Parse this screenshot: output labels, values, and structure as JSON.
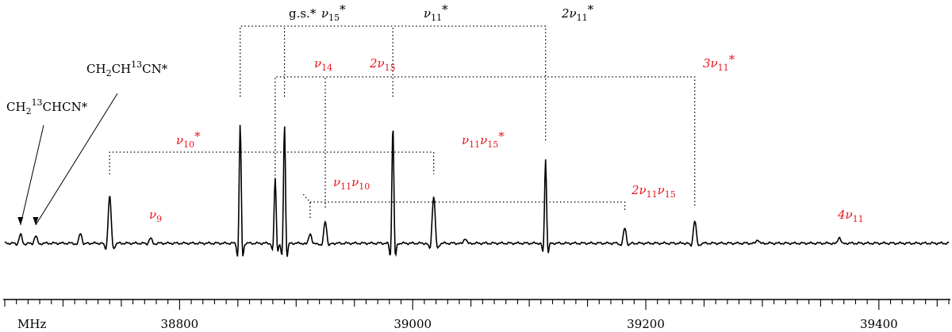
{
  "chart_data": {
    "type": "line",
    "x_unit_label": "MHz",
    "x_range": [
      38650,
      39460
    ],
    "x_ticks": [
      38800,
      39000,
      39200,
      39400
    ],
    "x_tick_labels": [
      "38800",
      "39000",
      "39200",
      "39400"
    ],
    "minor_tick_step": 10,
    "grid": false,
    "legend": "none",
    "colors": {
      "trace": "#000000",
      "label_black": "#000000",
      "label_red": "#e8141b"
    },
    "peaks": [
      {
        "freq": 38663.5,
        "height": 0.07
      },
      {
        "freq": 38676.5,
        "height": 0.06
      },
      {
        "freq": 38715,
        "height": 0.08
      },
      {
        "freq": 38740,
        "height": 0.38
      },
      {
        "freq": 38775,
        "height": 0.04
      },
      {
        "freq": 38852,
        "height": 0.95
      },
      {
        "freq": 38882,
        "height": 0.52
      },
      {
        "freq": 38890,
        "height": 0.95
      },
      {
        "freq": 38912,
        "height": 0.08
      },
      {
        "freq": 38925,
        "height": 0.18
      },
      {
        "freq": 38983,
        "height": 0.95
      },
      {
        "freq": 39018,
        "height": 0.38
      },
      {
        "freq": 39045,
        "height": 0.04
      },
      {
        "freq": 39114,
        "height": 0.68
      },
      {
        "freq": 39182,
        "height": 0.12
      },
      {
        "freq": 39242,
        "height": 0.18
      },
      {
        "freq": 39296,
        "height": 0.03
      },
      {
        "freq": 39366,
        "height": 0.05
      }
    ],
    "labels": [
      {
        "id": "gs",
        "text": "g.s.*",
        "color": "label_black"
      },
      {
        "id": "v15",
        "main": "ν",
        "sub": "15",
        "suffix": "*",
        "color": "label_black"
      },
      {
        "id": "v11",
        "main": "ν",
        "sub": "11",
        "suffix": "*",
        "color": "label_black"
      },
      {
        "id": "2v11",
        "main": "2ν",
        "sub": "11",
        "suffix": "*",
        "color": "label_black"
      },
      {
        "id": "v14",
        "main": "ν",
        "sub": "14",
        "suffix": "",
        "color": "label_red"
      },
      {
        "id": "2v15",
        "main": "2ν",
        "sub": "15",
        "suffix": "",
        "color": "label_red"
      },
      {
        "id": "3v11",
        "main": "3ν",
        "sub": "11",
        "suffix": "*",
        "color": "label_red"
      },
      {
        "id": "v10",
        "main": "ν",
        "sub": "10",
        "suffix": "*",
        "color": "label_red"
      },
      {
        "id": "v11v15",
        "main": "ν",
        "sub": "11",
        "main2": "ν",
        "sub2": "15",
        "suffix": "*",
        "color": "label_red"
      },
      {
        "id": "v11v10",
        "main": "ν",
        "sub": "11",
        "main2": "ν",
        "sub2": "10",
        "suffix": "",
        "color": "label_red"
      },
      {
        "id": "2v11v15",
        "main": "2ν",
        "sub": "11",
        "main2": "ν",
        "sub2": "15",
        "suffix": "",
        "color": "label_red"
      },
      {
        "id": "v9",
        "main": "ν",
        "sub": "9",
        "suffix": "",
        "color": "label_red"
      },
      {
        "id": "4v11",
        "main": "4ν",
        "sub": "11",
        "suffix": "",
        "color": "label_red"
      },
      {
        "id": "ch2ch13cn",
        "main": "CH",
        "sub": "2",
        "main2": "CH",
        "sup2": "13",
        "tail": "CN*",
        "color": "label_black"
      },
      {
        "id": "ch213chcn",
        "main": "CH",
        "sub": "2",
        "sup": "13",
        "tail": "CHCN*",
        "color": "label_black"
      }
    ]
  }
}
